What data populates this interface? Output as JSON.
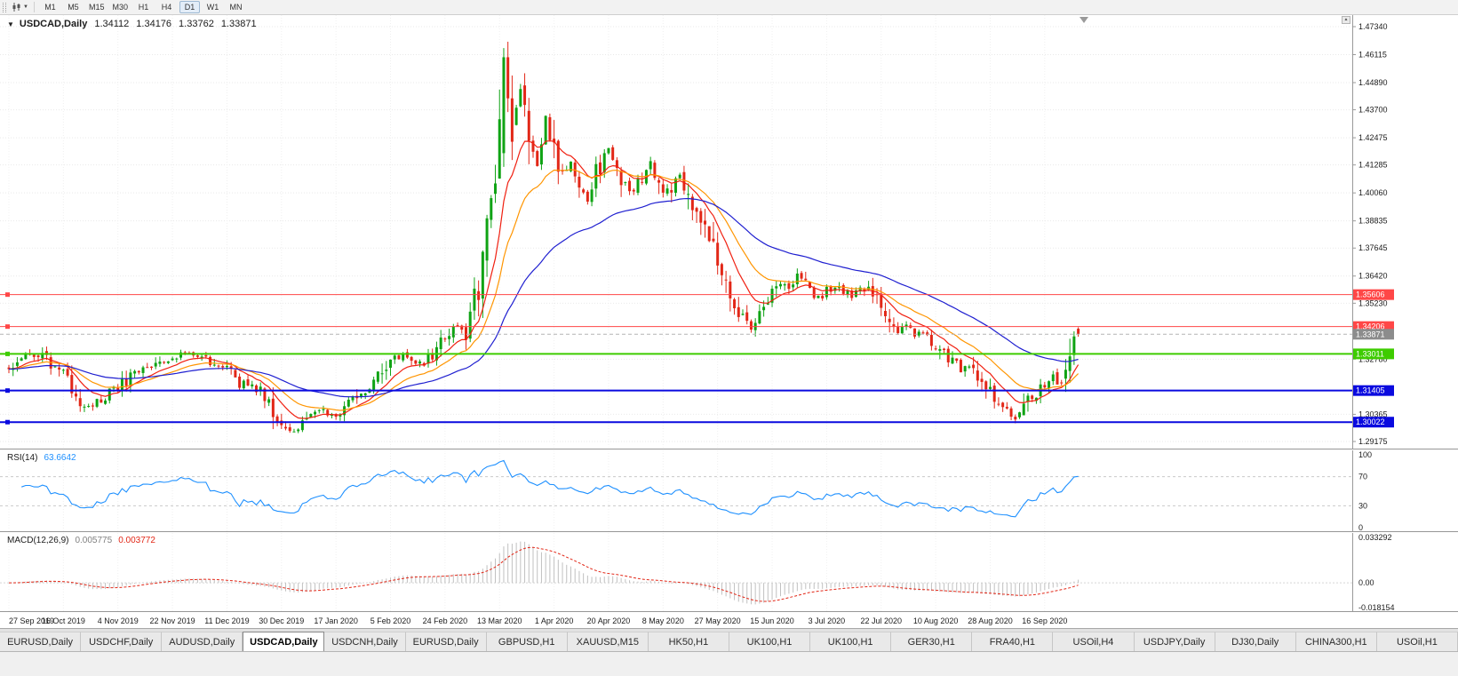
{
  "toolbar": {
    "timeframes": [
      "M1",
      "M5",
      "M15",
      "M30",
      "H1",
      "H4",
      "D1",
      "W1",
      "MN"
    ],
    "active_timeframe": "D1"
  },
  "chart_header": {
    "symbol_title": "USDCAD,Daily",
    "open": "1.34112",
    "high": "1.34176",
    "low": "1.33762",
    "close": "1.33871"
  },
  "indicators": {
    "rsi": {
      "label": "RSI(14)",
      "value": "63.6642"
    },
    "macd": {
      "label": "MACD(12,26,9)",
      "value_main": "0.005775",
      "value_signal": "0.003772"
    }
  },
  "tabs": {
    "items": [
      {
        "label": "EURUSD,Daily",
        "active": false
      },
      {
        "label": "USDCHF,Daily",
        "active": false
      },
      {
        "label": "AUDUSD,Daily",
        "active": false
      },
      {
        "label": "USDCAD,Daily",
        "active": true
      },
      {
        "label": "USDCNH,Daily",
        "active": false
      },
      {
        "label": "EURUSD,Daily",
        "active": false
      },
      {
        "label": "GBPUSD,H1",
        "active": false
      },
      {
        "label": "XAUUSD,M15",
        "active": false
      },
      {
        "label": "HK50,H1",
        "active": false
      },
      {
        "label": "UK100,H1",
        "active": false
      },
      {
        "label": "UK100,H1",
        "active": false
      },
      {
        "label": "GER30,H1",
        "active": false
      },
      {
        "label": "FRA40,H1",
        "active": false
      },
      {
        "label": "USOil,H4",
        "active": false
      },
      {
        "label": "USDJPY,Daily",
        "active": false
      },
      {
        "label": "DJ30,Daily",
        "active": false
      },
      {
        "label": "CHINA300,H1",
        "active": false
      },
      {
        "label": "USOil,H1",
        "active": false
      }
    ]
  },
  "chart_data": {
    "type": "candlestick",
    "symbol": "USDCAD",
    "timeframe": "Daily",
    "price_range": [
      1.29175,
      1.4734
    ],
    "candle_count": 256,
    "colors": {
      "up": "#0fa314",
      "down": "#e22717",
      "background": "#ffffff"
    },
    "close_keyframes": [
      [
        0,
        1.3235
      ],
      [
        2,
        1.3262
      ],
      [
        5,
        1.33
      ],
      [
        8,
        1.3288
      ],
      [
        11,
        1.3242
      ],
      [
        14,
        1.3185
      ],
      [
        17,
        1.3095
      ],
      [
        19,
        1.3068
      ],
      [
        22,
        1.3108
      ],
      [
        26,
        1.315
      ],
      [
        30,
        1.3228
      ],
      [
        34,
        1.3252
      ],
      [
        39,
        1.3293
      ],
      [
        43,
        1.3298
      ],
      [
        47,
        1.3278
      ],
      [
        52,
        1.3232
      ],
      [
        55,
        1.3172
      ],
      [
        58,
        1.3162
      ],
      [
        61,
        1.3128
      ],
      [
        64,
        1.3022
      ],
      [
        67,
        1.2962
      ],
      [
        70,
        1.2988
      ],
      [
        74,
        1.3048
      ],
      [
        78,
        1.3042
      ],
      [
        82,
        1.3098
      ],
      [
        86,
        1.3148
      ],
      [
        89,
        1.3215
      ],
      [
        91,
        1.3275
      ],
      [
        94,
        1.3288
      ],
      [
        97,
        1.3252
      ],
      [
        100,
        1.3282
      ],
      [
        104,
        1.3375
      ],
      [
        107,
        1.3418
      ],
      [
        109,
        1.3388
      ],
      [
        111,
        1.352
      ],
      [
        113,
        1.3705
      ],
      [
        115,
        1.396
      ],
      [
        117,
        1.433
      ],
      [
        118,
        1.4575
      ],
      [
        120,
        1.428
      ],
      [
        122,
        1.4465
      ],
      [
        124,
        1.431
      ],
      [
        126,
        1.412
      ],
      [
        128,
        1.433
      ],
      [
        130,
        1.4195
      ],
      [
        132,
        1.4092
      ],
      [
        134,
        1.4148
      ],
      [
        136,
        1.4048
      ],
      [
        138,
        1.3985
      ],
      [
        140,
        1.4092
      ],
      [
        143,
        1.4188
      ],
      [
        145,
        1.4105
      ],
      [
        147,
        1.4048
      ],
      [
        149,
        1.3998
      ],
      [
        151,
        1.4078
      ],
      [
        153,
        1.414
      ],
      [
        156,
        1.3985
      ],
      [
        158,
        1.4042
      ],
      [
        160,
        1.4088
      ],
      [
        162,
        1.4012
      ],
      [
        164,
        1.3905
      ],
      [
        166,
        1.3848
      ],
      [
        169,
        1.3702
      ],
      [
        172,
        1.3548
      ],
      [
        175,
        1.3452
      ],
      [
        177,
        1.3398
      ],
      [
        180,
        1.3482
      ],
      [
        182,
        1.3548
      ],
      [
        184,
        1.3618
      ],
      [
        186,
        1.3572
      ],
      [
        188,
        1.3648
      ],
      [
        190,
        1.3598
      ],
      [
        192,
        1.3548
      ],
      [
        195,
        1.3572
      ],
      [
        197,
        1.3602
      ],
      [
        199,
        1.3578
      ],
      [
        201,
        1.3558
      ],
      [
        203,
        1.3598
      ],
      [
        205,
        1.3575
      ],
      [
        208,
        1.3518
      ],
      [
        210,
        1.3448
      ],
      [
        212,
        1.3402
      ],
      [
        214,
        1.3422
      ],
      [
        216,
        1.3382
      ],
      [
        218,
        1.3402
      ],
      [
        221,
        1.3348
      ],
      [
        223,
        1.3298
      ],
      [
        225,
        1.3278
      ],
      [
        227,
        1.3232
      ],
      [
        229,
        1.3258
      ],
      [
        231,
        1.3198
      ],
      [
        234,
        1.3128
      ],
      [
        236,
        1.3078
      ],
      [
        238,
        1.3042
      ],
      [
        240,
        1.3008
      ],
      [
        242,
        1.3062
      ],
      [
        244,
        1.3122
      ],
      [
        247,
        1.3162
      ],
      [
        249,
        1.3202
      ],
      [
        251,
        1.3182
      ],
      [
        253,
        1.3308
      ],
      [
        255,
        1.3387
      ]
    ],
    "candle_overrides": [
      [
        118,
        1.418,
        1.464,
        1.412,
        1.46
      ],
      [
        119,
        1.46,
        1.4668,
        1.436,
        1.442
      ],
      [
        120,
        1.442,
        1.452,
        1.415,
        1.423
      ],
      [
        255,
        1.34112,
        1.34176,
        1.33762,
        1.33871
      ]
    ],
    "moving_averages": [
      {
        "period": 10,
        "color": "#f02011"
      },
      {
        "period": 20,
        "color": "#ff9500"
      },
      {
        "period": 50,
        "color": "#1f1fd0"
      }
    ],
    "hlines": [
      {
        "price": 1.35606,
        "label": "1.35606",
        "color": "#ff4747",
        "width": 1
      },
      {
        "price": 1.34206,
        "label": "1.34206",
        "color": "#ff4747",
        "width": 1
      },
      {
        "price": 1.33011,
        "label": "1.33011",
        "color": "#3ecc00",
        "width": 2
      },
      {
        "price": 1.31405,
        "label": "1.31405",
        "color": "#0a0adf",
        "width": 2
      },
      {
        "price": 1.30022,
        "label": "1.30022",
        "color": "#0a0adf",
        "width": 2
      }
    ],
    "current_price_line": {
      "price": 1.33871,
      "label": "1.33871",
      "color": "#8c8c8c"
    },
    "price_axis_labels": [
      "1.47340",
      "1.46115",
      "1.44890",
      "1.43700",
      "1.42475",
      "1.41285",
      "1.40060",
      "1.38835",
      "1.37645",
      "1.36420",
      "1.35230",
      "1.32780",
      "1.30365",
      "1.29175"
    ],
    "date_labels": [
      [
        "27 Sep 2019",
        0
      ],
      [
        "16 Oct 2019",
        13
      ],
      [
        "4 Nov 2019",
        26
      ],
      [
        "22 Nov 2019",
        39
      ],
      [
        "11 Dec 2019",
        52
      ],
      [
        "30 Dec 2019",
        65
      ],
      [
        "17 Jan 2020",
        78
      ],
      [
        "5 Feb 2020",
        91
      ],
      [
        "24 Feb 2020",
        104
      ],
      [
        "13 Mar 2020",
        117
      ],
      [
        "1 Apr 2020",
        130
      ],
      [
        "20 Apr 2020",
        143
      ],
      [
        "8 May 2020",
        156
      ],
      [
        "27 May 2020",
        169
      ],
      [
        "15 Jun 2020",
        182
      ],
      [
        "3 Jul 2020",
        195
      ],
      [
        "22 Jul 2020",
        208
      ],
      [
        "10 Aug 2020",
        221
      ],
      [
        "28 Aug 2020",
        234
      ],
      [
        "16 Sep 2020",
        247
      ]
    ],
    "rsi": {
      "period": 14,
      "current": 63.6642,
      "levels": [
        100,
        70,
        30,
        0
      ],
      "color": "#1E90FF"
    },
    "macd": {
      "fast": 12,
      "slow": 26,
      "signal": 9,
      "current_main": 0.005775,
      "current_signal": 0.003772,
      "range": [
        -0.018154,
        0.033292
      ],
      "levels": [
        "0.033292",
        "0.00",
        "-0.018154"
      ],
      "histogram_color": "#c0c0c0",
      "signal_color": "#e22717"
    }
  }
}
